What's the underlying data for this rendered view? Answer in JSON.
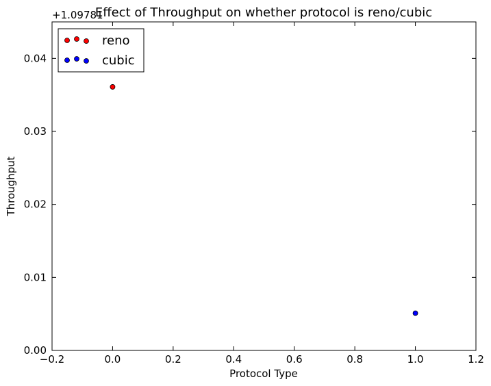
{
  "chart_data": {
    "type": "scatter",
    "title": "Effect of Throughput on whether protocol is reno/cubic",
    "xlabel": "Protocol Type",
    "ylabel": "Throughput",
    "y_offset_label": "+1.09781",
    "xlim": [
      -0.2,
      1.2
    ],
    "ylim": [
      0.0,
      0.045
    ],
    "xticks": [
      -0.2,
      0.0,
      0.2,
      0.4,
      0.6,
      0.8,
      1.0,
      1.2
    ],
    "xtick_labels": [
      "−0.2",
      "0.0",
      "0.2",
      "0.4",
      "0.6",
      "0.8",
      "1.0",
      "1.2"
    ],
    "yticks": [
      0.0,
      0.01,
      0.02,
      0.03,
      0.04
    ],
    "ytick_labels": [
      "0.00",
      "0.01",
      "0.02",
      "0.03",
      "0.04"
    ],
    "grid": false,
    "legend_position": "top-left",
    "series": [
      {
        "name": "reno",
        "color": "#ff0000",
        "points": [
          {
            "x": 0.0,
            "y": 0.0361
          }
        ]
      },
      {
        "name": "cubic",
        "color": "#0000ff",
        "points": [
          {
            "x": 1.0,
            "y": 0.0051
          }
        ]
      }
    ]
  }
}
